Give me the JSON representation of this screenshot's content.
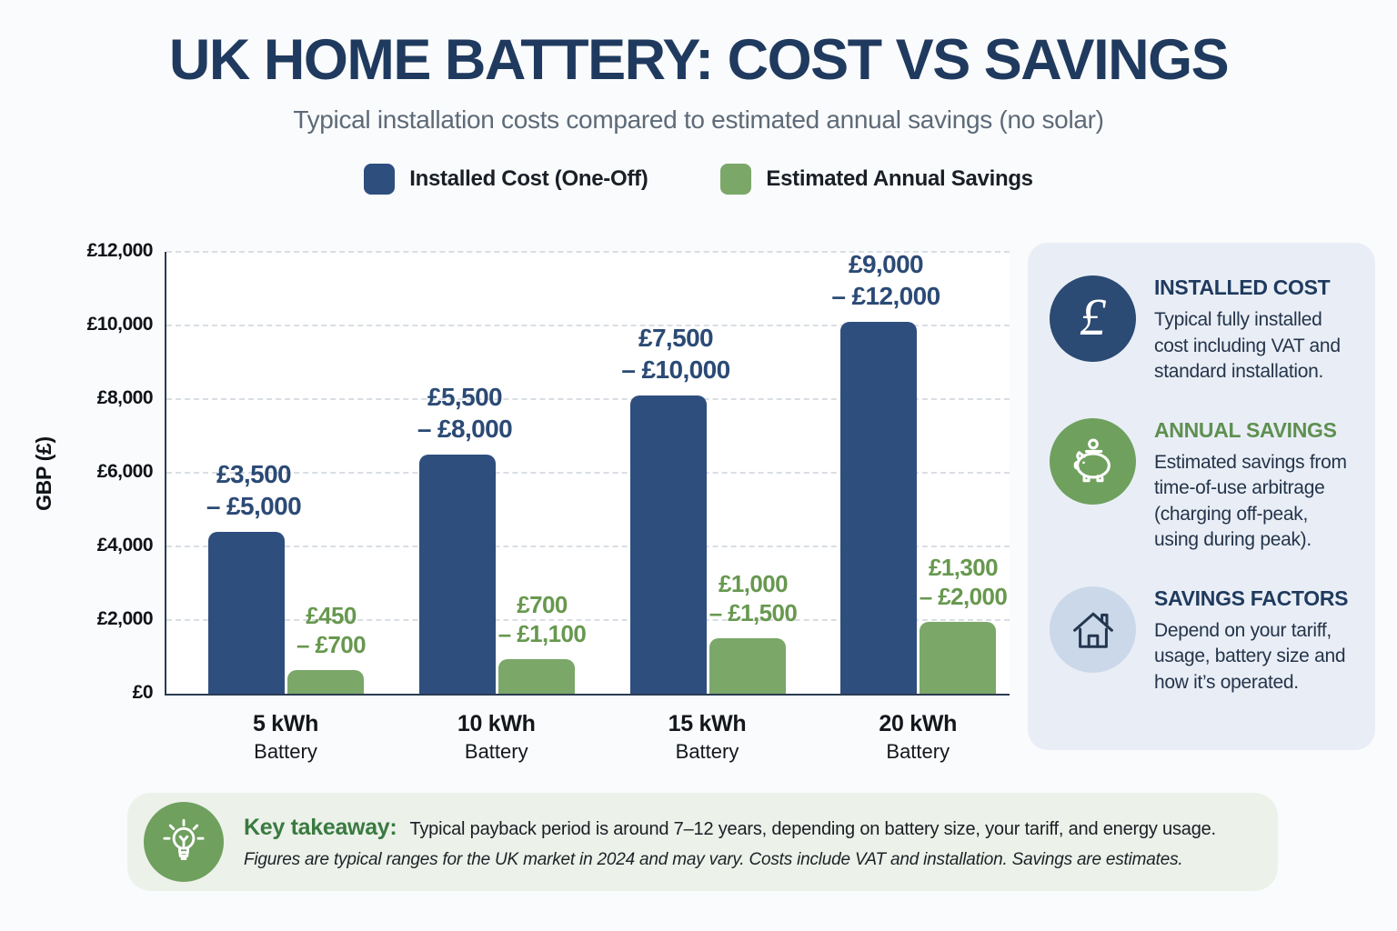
{
  "page": {
    "title": "UK HOME BATTERY: COST VS SAVINGS",
    "subtitle": "Typical installation costs compared to estimated annual savings (no solar)"
  },
  "legend": [
    {
      "label": "Installed Cost (One-Off)",
      "color": "#2E4E7E"
    },
    {
      "label": "Estimated Annual Savings",
      "color": "#7BA769"
    }
  ],
  "chart_data": {
    "type": "bar",
    "title": "UK Home Battery: Cost vs Savings",
    "ylabel": "GBP (£)",
    "ylim": [
      0,
      12000
    ],
    "ytick_interval": 2000,
    "yticks": [
      "£0",
      "£2,000",
      "£4,000",
      "£6,000",
      "£8,000",
      "£10,000",
      "£12,000"
    ],
    "grid": "horizontal dashed",
    "legend_position": "top",
    "categories": [
      {
        "size": "5 kWh",
        "type": "Battery"
      },
      {
        "size": "10 kWh",
        "type": "Battery"
      },
      {
        "size": "15 kWh",
        "type": "Battery"
      },
      {
        "size": "20 kWh",
        "type": "Battery"
      }
    ],
    "series": [
      {
        "name": "Installed Cost (One-Off)",
        "color": "#2E4E7E",
        "label_color": "#2B4A75",
        "range_low": [
          3500,
          5500,
          7500,
          9000
        ],
        "range_high": [
          5000,
          8000,
          10000,
          12000
        ],
        "bar_values": [
          4400,
          6500,
          8100,
          10100
        ],
        "labels": [
          {
            "line1": "£3,500",
            "line2": "– £5,000"
          },
          {
            "line1": "£5,500",
            "line2": "– £8,000"
          },
          {
            "line1": "£7,500",
            "line2": "– £10,000"
          },
          {
            "line1": "£9,000",
            "line2": "– £12,000"
          }
        ]
      },
      {
        "name": "Estimated Annual Savings",
        "color": "#7BA769",
        "label_color": "#67984F",
        "range_low": [
          450,
          700,
          1000,
          1300
        ],
        "range_high": [
          700,
          1100,
          1500,
          2000
        ],
        "bar_values": [
          650,
          950,
          1500,
          1950
        ],
        "labels": [
          {
            "line1": "£450",
            "line2": "– £700"
          },
          {
            "line1": "£700",
            "line2": "– £1,100"
          },
          {
            "line1": "£1,000",
            "line2": "– £1,500"
          },
          {
            "line1": "£1,300",
            "line2": "– £2,000"
          }
        ]
      }
    ]
  },
  "sidebar": {
    "cards": [
      {
        "icon": "pound-icon",
        "title": "INSTALLED COST",
        "body": "Typical fully installed cost including VAT and standard installation."
      },
      {
        "icon": "piggy-bank-icon",
        "title": "ANNUAL SAVINGS",
        "body": "Estimated savings from time-of-use arbitrage (charging off-peak, using during peak)."
      },
      {
        "icon": "house-icon",
        "title": "SAVINGS FACTORS",
        "body": "Depend on your tariff, usage, battery size and how it’s operated."
      }
    ]
  },
  "takeaway": {
    "label": "Key takeaway:",
    "text": "Typical payback period is around 7–12 years, depending on battery size, your tariff, and energy usage.",
    "footnote": "Figures are typical ranges for the UK market in 2024 and may vary. Costs include VAT and installation. Savings are estimates."
  },
  "colors": {
    "page_background": "#FAFBFC",
    "cost_bar": "#2E4E7E",
    "savings_bar": "#7BA769",
    "title_navy": "#1F3A5E",
    "green_text": "#5E9050",
    "sidebar_background": "#E9EEF6",
    "takeaway_background": "#ECF1EA",
    "axis": "#2A3B52"
  }
}
